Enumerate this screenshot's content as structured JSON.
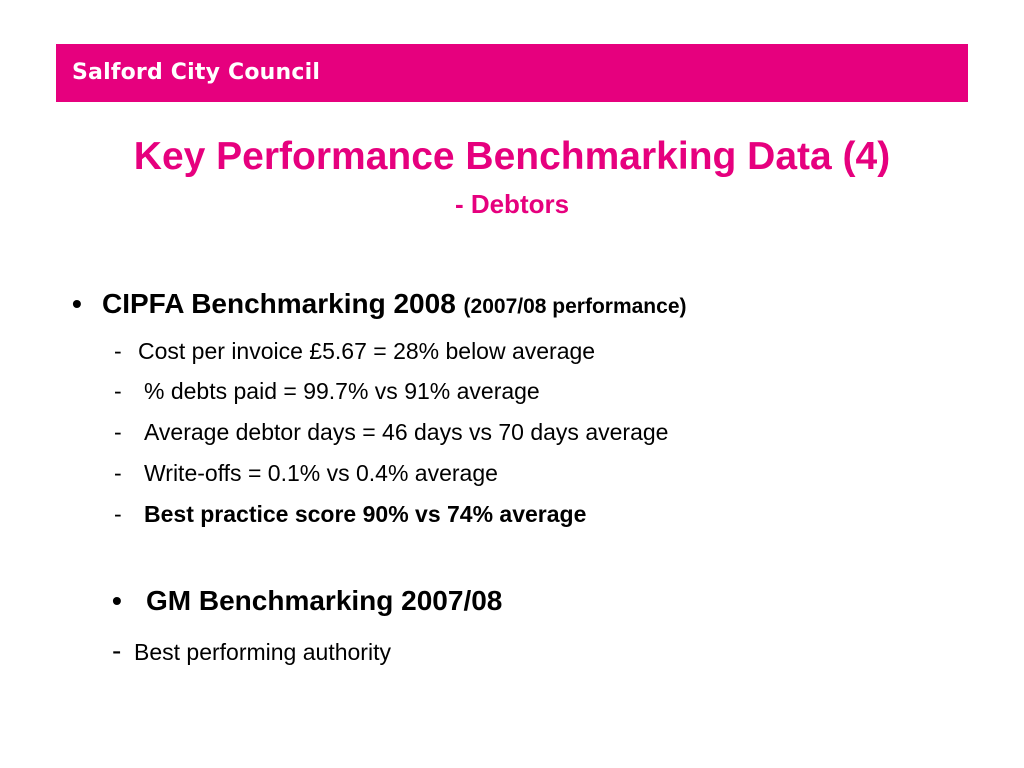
{
  "header": {
    "brand": "Salford City Council",
    "color": "#e6007e"
  },
  "title": "Key Performance Benchmarking Data (4)",
  "subtitle": "- Debtors",
  "cipfa": {
    "bullet": "•",
    "heading": "CIPFA Benchmarking 2008",
    "note": "(2007/08 performance)",
    "items": [
      {
        "dash": "-",
        "text": "Cost per invoice £5.67 = 28% below average"
      },
      {
        "dash": "-",
        "text": "% debts paid = 99.7% vs 91% average"
      },
      {
        "dash": "-",
        "text": "Average debtor days = 46 days vs 70 days average"
      },
      {
        "dash": "-",
        "text": "Write-offs = 0.1% vs 0.4% average"
      },
      {
        "dash": "-",
        "text": "Best practice score 90% vs 74% average"
      }
    ]
  },
  "gm": {
    "bullet": "•",
    "heading": "GM Benchmarking 2007/08",
    "sub_dash": "-",
    "sub_text": "Best performing authority"
  }
}
